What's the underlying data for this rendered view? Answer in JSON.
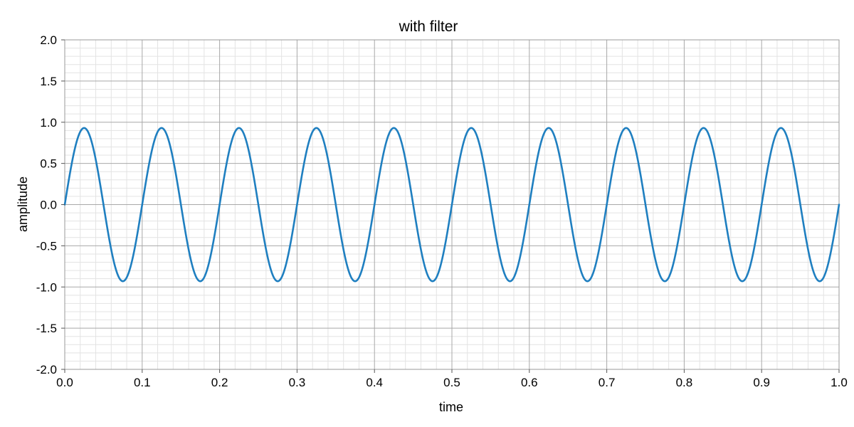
{
  "chart_data": {
    "type": "line",
    "title": "with filter",
    "xlabel": "time",
    "ylabel": "amplitude",
    "xlim": [
      0.0,
      1.0
    ],
    "ylim": [
      -2.0,
      2.0
    ],
    "x_ticks": [
      "0.0",
      "0.1",
      "0.2",
      "0.3",
      "0.4",
      "0.5",
      "0.6",
      "0.7",
      "0.8",
      "0.9",
      "1.0"
    ],
    "y_ticks": [
      "-2.0",
      "-1.5",
      "-1.0",
      "-0.5",
      "0.0",
      "0.5",
      "1.0",
      "1.5",
      "2.0"
    ],
    "grid": true,
    "legend": "none",
    "series": [
      {
        "function": "sine",
        "frequency_hz": 10,
        "amplitude": 0.93,
        "phase": 0,
        "color": "#1f7fc0"
      }
    ]
  }
}
